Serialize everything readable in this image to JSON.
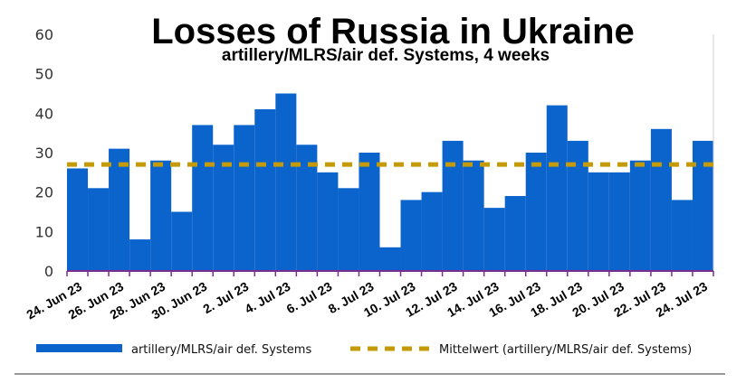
{
  "chart_data": {
    "type": "bar",
    "title": "Losses of Russia in Ukraine",
    "subtitle": "artillery/MLRS/air def. Systems, 4 weeks",
    "ylim": [
      0,
      60
    ],
    "yticks": [
      0,
      10,
      20,
      30,
      40,
      50,
      60
    ],
    "x_tick_labels": [
      "24. Jun 23",
      "26. Jun 23",
      "28. Jun 23",
      "30. Jun 23",
      "2. Jul 23",
      "4. Jul 23",
      "6. Jul 23",
      "8. Jul 23",
      "10. Jul 23",
      "12. Jul 23",
      "14. Jul 23",
      "16. Jul 23",
      "18. Jul 23",
      "20. Jul 23",
      "22. Jul 23",
      "24. Jul 23"
    ],
    "categories": [
      "24. Jun 23",
      "25. Jun 23",
      "26. Jun 23",
      "27. Jun 23",
      "28. Jun 23",
      "29. Jun 23",
      "30. Jun 23",
      "1. Jul 23",
      "2. Jul 23",
      "3. Jul 23",
      "4. Jul 23",
      "5. Jul 23",
      "6. Jul 23",
      "7. Jul 23",
      "8. Jul 23",
      "9. Jul 23",
      "10. Jul 23",
      "11. Jul 23",
      "12. Jul 23",
      "13. Jul 23",
      "14. Jul 23",
      "15. Jul 23",
      "16. Jul 23",
      "17. Jul 23",
      "18. Jul 23",
      "19. Jul 23",
      "20. Jul 23",
      "21. Jul 23",
      "22. Jul 23",
      "23. Jul 23",
      "24. Jul 23"
    ],
    "series": [
      {
        "name": "artillery/MLRS/air def. Systems",
        "color": "#0b63cc",
        "values": [
          26,
          21,
          31,
          8,
          28,
          15,
          37,
          32,
          37,
          41,
          45,
          32,
          25,
          21,
          30,
          6,
          18,
          20,
          33,
          28,
          16,
          19,
          30,
          42,
          33,
          25,
          25,
          28,
          36,
          18,
          33
        ]
      },
      {
        "name": "Mittelwert (artillery/MLRS/air def. Systems)",
        "color": "#c49a06",
        "style": "dashed",
        "value": 27
      }
    ],
    "legend_position": "bottom",
    "grid": false
  }
}
